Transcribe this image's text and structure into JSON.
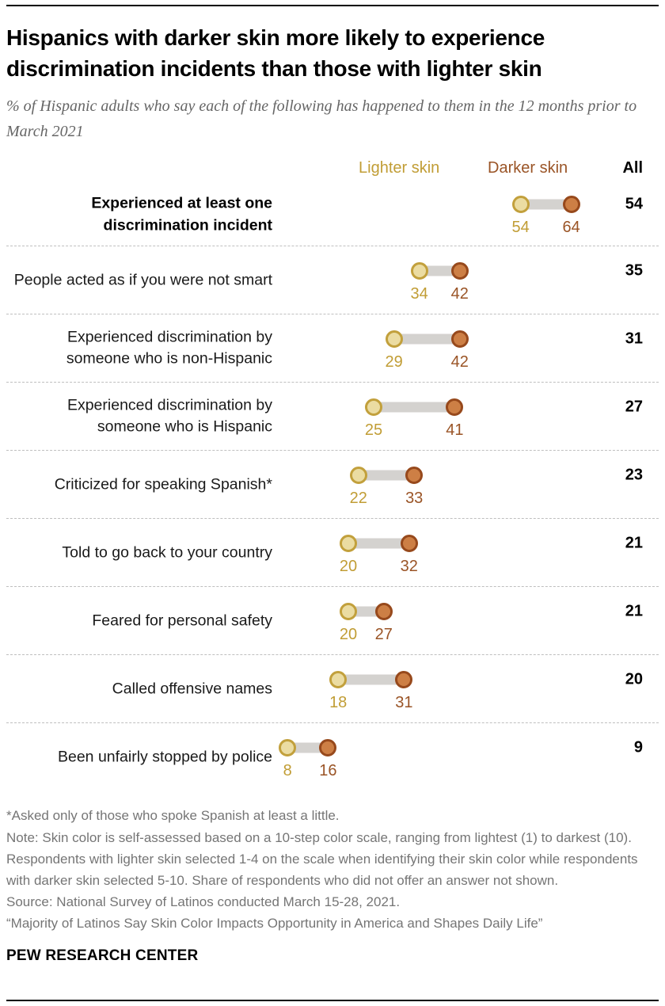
{
  "chart_data": {
    "type": "dumbbell",
    "title": "Hispanics with darker skin more likely to experience discrimination incidents than those with lighter skin",
    "subtitle": "% of Hispanic adults who say each of the following has happened to them in the 12 months prior to March 2021",
    "legend_position": "top",
    "grid": "dashed row separators",
    "xlim": [
      0,
      70
    ],
    "categories": [
      "Experienced at least one discrimination incident",
      "People acted as if you were not smart",
      "Experienced discrimination by someone who is non-Hispanic",
      "Experienced discrimination by someone who is Hispanic",
      "Criticized for speaking Spanish*",
      "Told to go back to your country",
      "Feared for personal safety",
      "Called offensive names",
      "Been unfairly stopped by police"
    ],
    "series": [
      {
        "name": "Lighter skin",
        "values": [
          54,
          34,
          29,
          25,
          22,
          20,
          20,
          18,
          8
        ]
      },
      {
        "name": "Darker skin",
        "values": [
          64,
          42,
          42,
          41,
          33,
          32,
          27,
          31,
          16
        ]
      },
      {
        "name": "All",
        "values": [
          54,
          35,
          31,
          27,
          23,
          21,
          21,
          20,
          9
        ]
      }
    ],
    "bold_category_index": 0
  },
  "colors": {
    "lighter_fill": "#EBDCA2",
    "lighter_stroke": "#C2A03C",
    "lighter_text": "#C19D35",
    "darker_fill": "#CD7F45",
    "darker_stroke": "#97491C",
    "darker_text": "#9A5426",
    "connector": "#D4D2CF",
    "all_text": "#000000"
  },
  "footnotes": {
    "asterisk": "*Asked only of those who spoke Spanish at least a little.",
    "note": "Note: Skin color is self-assessed based on a 10-step color scale, ranging from lightest (1) to darkest (10). Respondents with lighter skin selected 1-4 on the scale when identifying their skin color while respondents with darker skin selected 5-10. Share of respondents who did not offer an answer not shown.",
    "source": "Source: National Survey of Latinos conducted March 15-28, 2021.",
    "report_quote": "“Majority of Latinos Say Skin Color Impacts Opportunity in America and Shapes Daily Life”"
  },
  "footer": {
    "brand": "PEW RESEARCH CENTER"
  }
}
